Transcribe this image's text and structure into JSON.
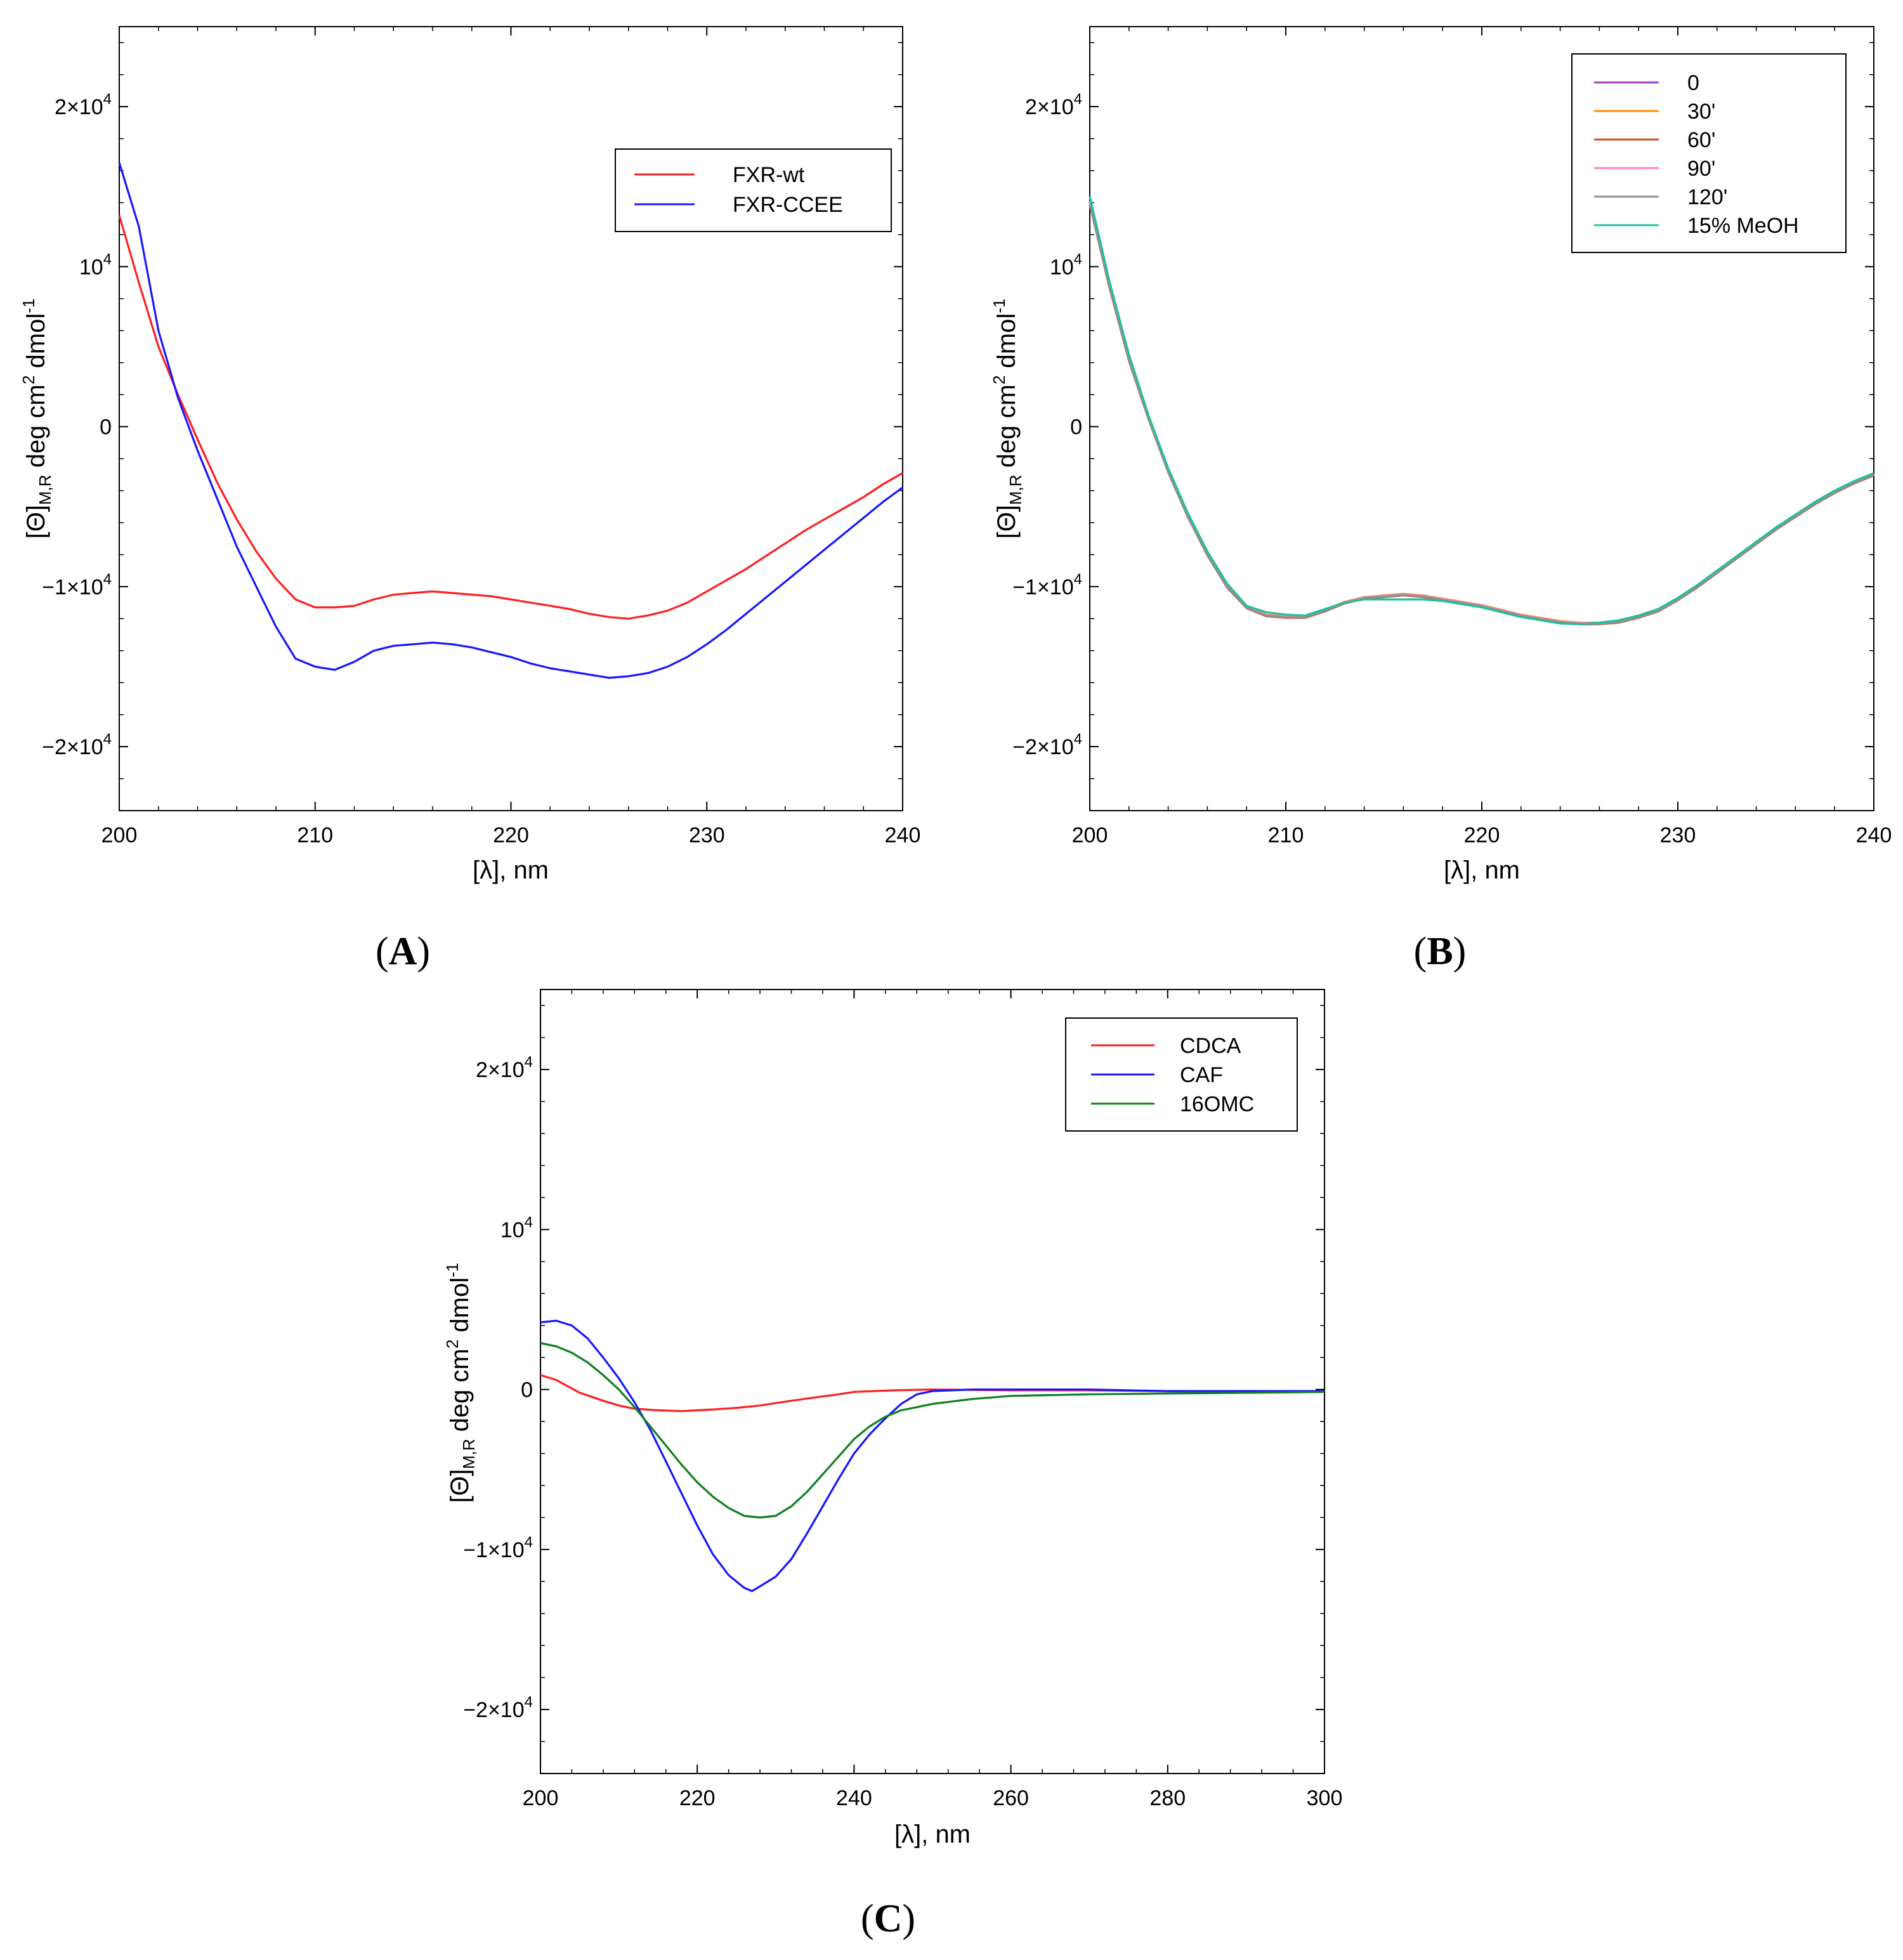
{
  "chart_data": [
    {
      "panel": "A",
      "type": "line",
      "xlabel": "[λ], nm",
      "ylabel": {
        "main": "[Θ]",
        "sub": "M,R",
        "rest": " deg cm",
        "sup1": "2",
        "rest2": " dmol",
        "sup2": "-1"
      },
      "xlim": [
        200,
        240
      ],
      "ylim": [
        -24000,
        25000
      ],
      "xticks": [
        200,
        210,
        220,
        230,
        240
      ],
      "yticks": [
        {
          "v": 20000,
          "base": "2×10",
          "exp": "4"
        },
        {
          "v": 10000,
          "base": "10",
          "exp": "4"
        },
        {
          "v": 0,
          "base": "0",
          "exp": ""
        },
        {
          "v": -10000,
          "base": "−1×10",
          "exp": "4"
        },
        {
          "v": -20000,
          "base": "−2×10",
          "exp": "4"
        }
      ],
      "legend": "top-right",
      "series": [
        {
          "name": "FXR-wt",
          "color": "#ff2020",
          "x": [
            200,
            201,
            202,
            203,
            204,
            205,
            206,
            207,
            208,
            209,
            210,
            211,
            212,
            213,
            214,
            215,
            216,
            217,
            218,
            219,
            220,
            221,
            222,
            223,
            224,
            225,
            226,
            227,
            228,
            229,
            230,
            231,
            232,
            233,
            234,
            235,
            236,
            237,
            238,
            239,
            240
          ],
          "y": [
            13200,
            9000,
            5000,
            2000,
            -800,
            -3500,
            -5800,
            -7800,
            -9500,
            -10800,
            -11300,
            -11300,
            -11200,
            -10800,
            -10500,
            -10400,
            -10300,
            -10400,
            -10500,
            -10600,
            -10800,
            -11000,
            -11200,
            -11400,
            -11700,
            -11900,
            -12000,
            -11800,
            -11500,
            -11000,
            -10300,
            -9600,
            -8900,
            -8100,
            -7300,
            -6500,
            -5800,
            -5100,
            -4400,
            -3600,
            -2900
          ]
        },
        {
          "name": "FXR-CCEE",
          "color": "#1818ff",
          "x": [
            200,
            201,
            202,
            203,
            204,
            205,
            206,
            207,
            208,
            209,
            210,
            211,
            212,
            213,
            214,
            215,
            216,
            217,
            218,
            219,
            220,
            221,
            222,
            223,
            224,
            225,
            226,
            227,
            228,
            229,
            230,
            231,
            232,
            233,
            234,
            235,
            236,
            237,
            238,
            239,
            240
          ],
          "y": [
            16500,
            12500,
            6000,
            1800,
            -1500,
            -4500,
            -7500,
            -10000,
            -12500,
            -14500,
            -15000,
            -15200,
            -14700,
            -14000,
            -13700,
            -13600,
            -13500,
            -13600,
            -13800,
            -14100,
            -14400,
            -14800,
            -15100,
            -15300,
            -15500,
            -15700,
            -15600,
            -15400,
            -15000,
            -14400,
            -13600,
            -12700,
            -11700,
            -10700,
            -9700,
            -8700,
            -7700,
            -6700,
            -5700,
            -4700,
            -3800
          ]
        }
      ]
    },
    {
      "panel": "B",
      "type": "line",
      "xlabel": "[λ], nm",
      "ylabel": {
        "main": "[Θ]",
        "sub": "M,R",
        "rest": " deg cm",
        "sup1": "2",
        "rest2": " dmol",
        "sup2": "-1"
      },
      "xlim": [
        200,
        240
      ],
      "ylim": [
        -24000,
        25000
      ],
      "xticks": [
        200,
        210,
        220,
        230,
        240
      ],
      "yticks": [
        {
          "v": 20000,
          "base": "2×10",
          "exp": "4"
        },
        {
          "v": 10000,
          "base": "10",
          "exp": "4"
        },
        {
          "v": 0,
          "base": "0",
          "exp": ""
        },
        {
          "v": -10000,
          "base": "−1×10",
          "exp": "4"
        },
        {
          "v": -20000,
          "base": "−2×10",
          "exp": "4"
        }
      ],
      "legend": "top-right",
      "x": [
        200,
        201,
        202,
        203,
        204,
        205,
        206,
        207,
        208,
        209,
        210,
        211,
        212,
        213,
        214,
        215,
        216,
        217,
        218,
        219,
        220,
        221,
        222,
        223,
        224,
        225,
        226,
        227,
        228,
        229,
        230,
        231,
        232,
        233,
        234,
        235,
        236,
        237,
        238,
        239,
        240
      ],
      "series": [
        {
          "name": "0",
          "color": "#a040c0",
          "y": [
            14000,
            8800,
            4200,
            500,
            -2800,
            -5600,
            -8000,
            -10000,
            -11300,
            -11800,
            -11900,
            -11900,
            -11500,
            -11000,
            -10700,
            -10600,
            -10500,
            -10600,
            -10800,
            -11000,
            -11200,
            -11500,
            -11800,
            -12000,
            -12200,
            -12300,
            -12300,
            -12200,
            -11900,
            -11500,
            -10800,
            -10000,
            -9100,
            -8200,
            -7300,
            -6400,
            -5600,
            -4800,
            -4100,
            -3500,
            -3000
          ]
        },
        {
          "name": "30'",
          "color": "#ff8c00",
          "y": [
            14100,
            8900,
            4300,
            550,
            -2750,
            -5550,
            -7950,
            -9950,
            -11250,
            -11750,
            -11850,
            -11850,
            -11450,
            -10950,
            -10650,
            -10550,
            -10450,
            -10550,
            -10750,
            -10950,
            -11150,
            -11450,
            -11750,
            -11950,
            -12150,
            -12250,
            -12250,
            -12150,
            -11850,
            -11450,
            -10750,
            -9950,
            -9050,
            -8150,
            -7250,
            -6350,
            -5550,
            -4750,
            -4050,
            -3450,
            -2950
          ]
        },
        {
          "name": "60'",
          "color": "#d05020",
          "y": [
            13900,
            8700,
            4100,
            450,
            -2850,
            -5650,
            -8050,
            -10050,
            -11350,
            -11850,
            -11950,
            -11950,
            -11550,
            -11050,
            -10750,
            -10650,
            -10550,
            -10650,
            -10850,
            -11050,
            -11250,
            -11550,
            -11850,
            -12050,
            -12250,
            -12350,
            -12350,
            -12250,
            -11950,
            -11550,
            -10850,
            -10050,
            -9150,
            -8250,
            -7350,
            -6450,
            -5650,
            -4850,
            -4150,
            -3550,
            -3050
          ]
        },
        {
          "name": "90'",
          "color": "#ff80c0",
          "y": [
            14050,
            8850,
            4250,
            520,
            -2780,
            -5580,
            -7980,
            -9980,
            -11280,
            -11780,
            -11880,
            -11880,
            -11480,
            -10980,
            -10680,
            -10580,
            -10480,
            -10580,
            -10780,
            -10980,
            -11180,
            -11480,
            -11780,
            -11980,
            -12180,
            -12280,
            -12280,
            -12180,
            -11880,
            -11480,
            -10780,
            -9980,
            -9080,
            -8180,
            -7280,
            -6380,
            -5580,
            -4780,
            -4080,
            -3480,
            -2980
          ]
        },
        {
          "name": "120'",
          "color": "#909090",
          "y": [
            13950,
            8750,
            4150,
            480,
            -2820,
            -5620,
            -8020,
            -10020,
            -11320,
            -11820,
            -11920,
            -11920,
            -11520,
            -11020,
            -10720,
            -10620,
            -10520,
            -10620,
            -10820,
            -11020,
            -11220,
            -11520,
            -11820,
            -12020,
            -12220,
            -12320,
            -12320,
            -12220,
            -11920,
            -11520,
            -10820,
            -10020,
            -9120,
            -8220,
            -7320,
            -6420,
            -5620,
            -4820,
            -4120,
            -3520,
            -3020
          ]
        },
        {
          "name": "15% MeOH",
          "color": "#20c0a0",
          "y": [
            14400,
            9100,
            4500,
            700,
            -2600,
            -5400,
            -7800,
            -9800,
            -11200,
            -11600,
            -11750,
            -11800,
            -11400,
            -11000,
            -10800,
            -10800,
            -10800,
            -10800,
            -10900,
            -11100,
            -11300,
            -11600,
            -11900,
            -12100,
            -12300,
            -12350,
            -12250,
            -12100,
            -11800,
            -11400,
            -10700,
            -9900,
            -9000,
            -8100,
            -7200,
            -6300,
            -5500,
            -4700,
            -4000,
            -3400,
            -2900
          ]
        }
      ]
    },
    {
      "panel": "C",
      "type": "line",
      "xlabel": "[λ], nm",
      "ylabel": {
        "main": "[Θ]",
        "sub": "M,R",
        "rest": " deg cm",
        "sup1": "2",
        "rest2": " dmol",
        "sup2": "-1"
      },
      "xlim": [
        200,
        300
      ],
      "ylim": [
        -24000,
        25000
      ],
      "xticks": [
        200,
        220,
        240,
        260,
        280,
        300
      ],
      "yticks": [
        {
          "v": 20000,
          "base": "2×10",
          "exp": "4"
        },
        {
          "v": 10000,
          "base": "10",
          "exp": "4"
        },
        {
          "v": 0,
          "base": "0",
          "exp": ""
        },
        {
          "v": -10000,
          "base": "−1×10",
          "exp": "4"
        },
        {
          "v": -20000,
          "base": "−2×10",
          "exp": "4"
        }
      ],
      "legend": "top-right",
      "series": [
        {
          "name": "CDCA",
          "color": "#ff2020",
          "x": [
            200,
            202,
            205,
            208,
            210,
            212,
            215,
            218,
            220,
            222,
            225,
            228,
            230,
            232,
            235,
            238,
            240,
            245,
            250,
            260,
            270,
            280,
            290,
            300
          ],
          "y": [
            900,
            600,
            -200,
            -700,
            -1000,
            -1200,
            -1300,
            -1350,
            -1300,
            -1250,
            -1150,
            -1000,
            -850,
            -700,
            -500,
            -300,
            -150,
            -50,
            0,
            -50,
            -50,
            -100,
            -100,
            -100
          ]
        },
        {
          "name": "CAF",
          "color": "#1818ff",
          "x": [
            200,
            202,
            204,
            206,
            208,
            210,
            212,
            214,
            216,
            218,
            220,
            222,
            224,
            226,
            227,
            228,
            230,
            232,
            234,
            236,
            238,
            240,
            242,
            244,
            246,
            248,
            250,
            255,
            260,
            270,
            280,
            290,
            300
          ],
          "y": [
            4200,
            4300,
            4000,
            3200,
            2000,
            700,
            -800,
            -2500,
            -4500,
            -6500,
            -8500,
            -10300,
            -11600,
            -12400,
            -12600,
            -12300,
            -11700,
            -10600,
            -9000,
            -7300,
            -5600,
            -4000,
            -2800,
            -1800,
            -900,
            -300,
            -100,
            0,
            0,
            0,
            -100,
            -100,
            -100
          ]
        },
        {
          "name": "16OMC",
          "color": "#108020",
          "x": [
            200,
            202,
            204,
            206,
            208,
            210,
            212,
            214,
            216,
            218,
            220,
            222,
            224,
            226,
            228,
            230,
            232,
            234,
            236,
            238,
            240,
            242,
            244,
            246,
            248,
            250,
            255,
            260,
            270,
            280,
            290,
            300
          ],
          "y": [
            2900,
            2700,
            2300,
            1700,
            900,
            0,
            -1100,
            -2300,
            -3500,
            -4700,
            -5800,
            -6700,
            -7400,
            -7900,
            -8000,
            -7900,
            -7300,
            -6400,
            -5300,
            -4200,
            -3100,
            -2300,
            -1700,
            -1300,
            -1100,
            -900,
            -600,
            -400,
            -300,
            -250,
            -200,
            -150
          ]
        }
      ]
    }
  ],
  "panel_labels": [
    {
      "open": "(",
      "letter": "A",
      "close": ")"
    },
    {
      "open": "(",
      "letter": "B",
      "close": ")"
    },
    {
      "open": "(",
      "letter": "C",
      "close": ")"
    }
  ]
}
